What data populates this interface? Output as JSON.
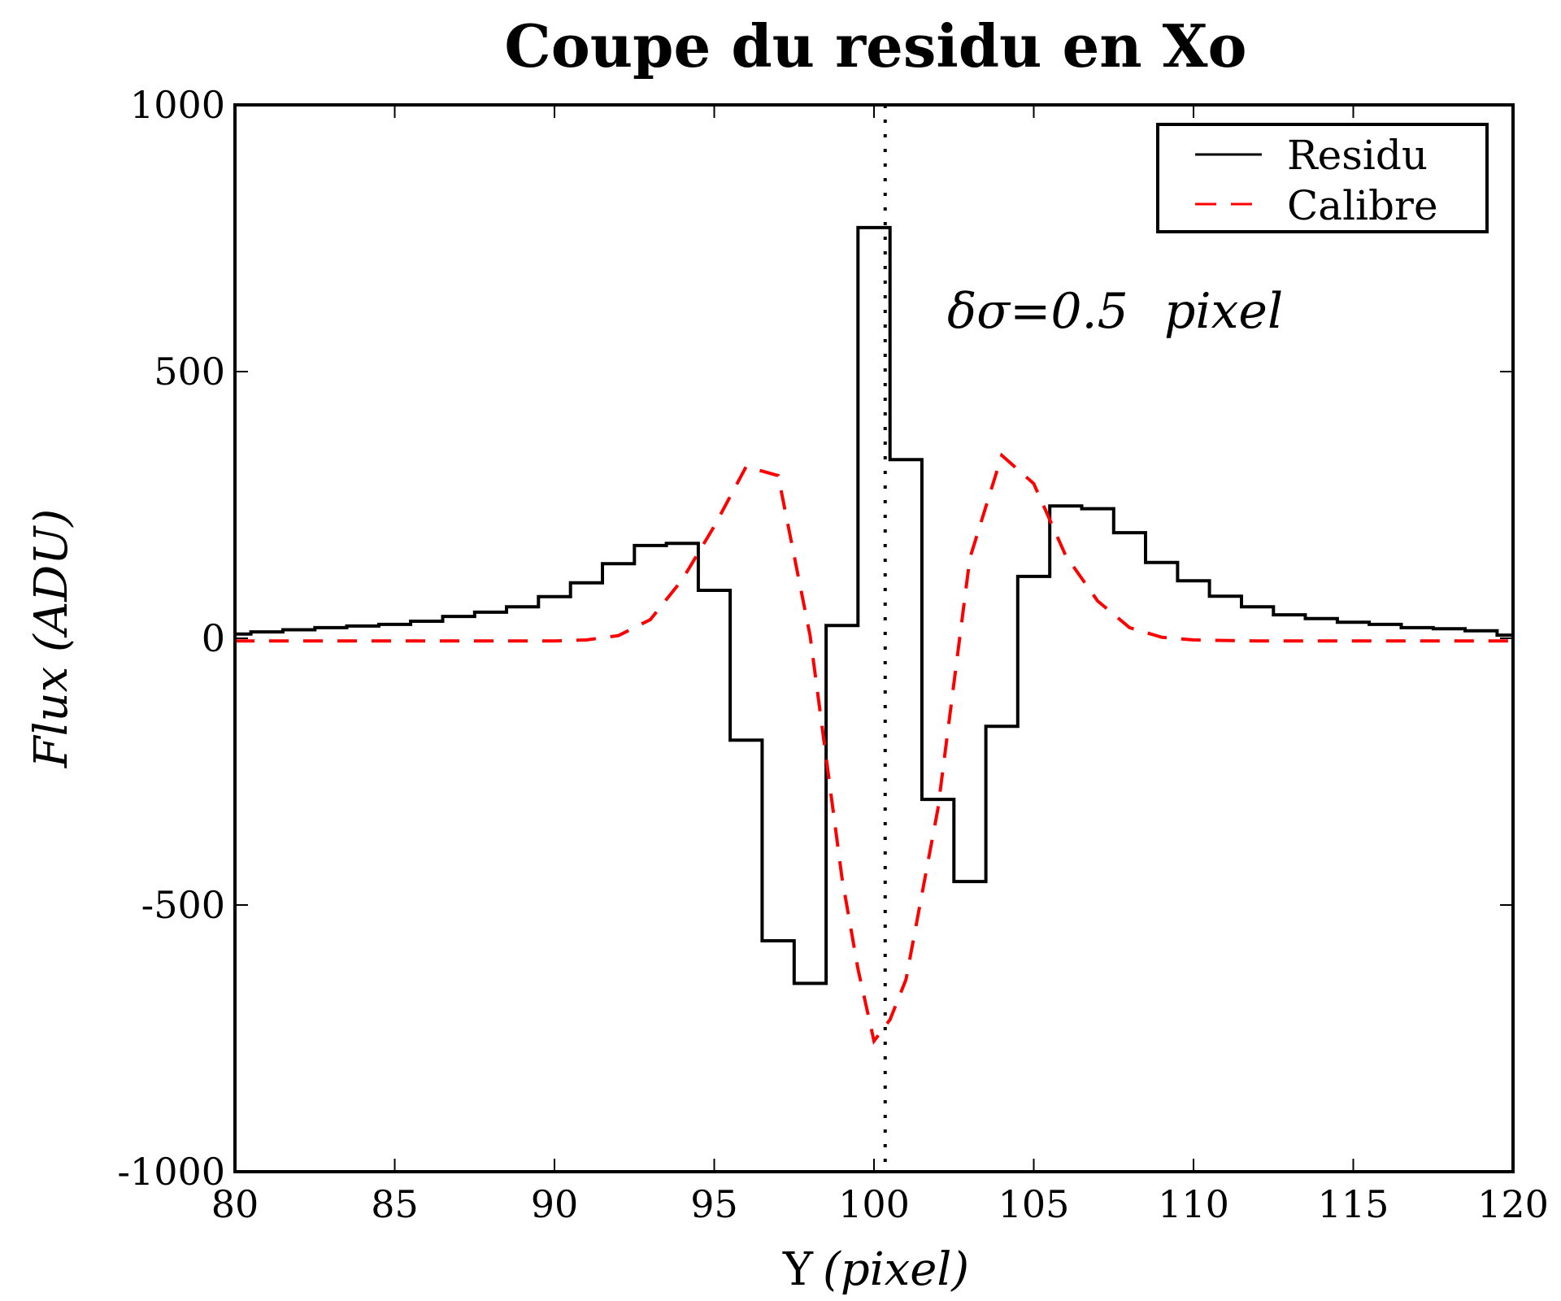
{
  "figure": {
    "title": "Coupe du residu en Xo",
    "xlabel_main": "Y",
    "xlabel_italic": "(pixel)",
    "ylabel_italic": "Flux (ADU)",
    "annotation": "δσ=0.5 pixel",
    "annotation_prefix": "δσ=0.5",
    "annotation_suffix": "pixel"
  },
  "legend": {
    "items": [
      {
        "label": "Residu",
        "color": "#000000",
        "style": "solid"
      },
      {
        "label": "Calibre",
        "color": "#ff0000",
        "style": "dashed"
      }
    ]
  },
  "chart_data": {
    "type": "line",
    "title": "Coupe du residu en Xo",
    "xlabel": "Y (pixel)",
    "ylabel": "Flux (ADU)",
    "xlim": [
      80,
      120
    ],
    "ylim": [
      -1000,
      1000
    ],
    "xticks": [
      80,
      85,
      90,
      95,
      100,
      105,
      110,
      115,
      120
    ],
    "yticks": [
      -1000,
      -500,
      0,
      500,
      1000
    ],
    "ytick_labels": [
      "-1000",
      "-500",
      "0",
      "500",
      "1000"
    ],
    "grid": false,
    "legend_position": "upper right",
    "vline": {
      "x": 100.35,
      "style": "dotted",
      "color": "#000000"
    },
    "annotation": {
      "text": "δσ=0.5 pixel",
      "x": 102.3,
      "y": 600
    },
    "series": [
      {
        "name": "Residu",
        "style": "steps-mid",
        "color": "#000000",
        "x": [
          80,
          81,
          82,
          83,
          84,
          85,
          86,
          87,
          88,
          89,
          90,
          91,
          92,
          93,
          94,
          95,
          96,
          97,
          98,
          99,
          100,
          101,
          102,
          103,
          104,
          105,
          106,
          107,
          108,
          109,
          110,
          111,
          112,
          113,
          114,
          115,
          116,
          117,
          118,
          119,
          120
        ],
        "values": [
          8,
          12,
          16,
          20,
          23,
          26,
          32,
          41,
          49,
          59,
          78,
          104,
          140,
          174,
          178,
          90,
          -191,
          -567,
          -647,
          24,
          770,
          335,
          -302,
          -456,
          -165,
          116,
          248,
          243,
          198,
          142,
          108,
          79,
          59,
          44,
          37,
          30,
          26,
          20,
          18,
          14,
          6
        ]
      },
      {
        "name": "Calibre",
        "style": "dashed",
        "color": "#ff0000",
        "x": [
          80,
          82,
          84,
          86,
          88,
          90,
          91,
          92,
          93,
          94,
          95,
          96,
          97,
          98,
          99,
          99.5,
          100,
          100.5,
          101,
          102,
          103,
          104,
          105,
          106,
          107,
          108,
          109,
          110,
          112,
          114,
          116,
          118,
          120
        ],
        "values": [
          -5,
          -5,
          -5,
          -5,
          -5,
          -5,
          -3,
          5,
          35,
          110,
          210,
          322,
          305,
          5,
          -450,
          -620,
          -755,
          -715,
          -640,
          -320,
          150,
          343,
          290,
          155,
          70,
          20,
          2,
          -3,
          -5,
          -5,
          -5,
          -5,
          -5
        ]
      }
    ]
  }
}
